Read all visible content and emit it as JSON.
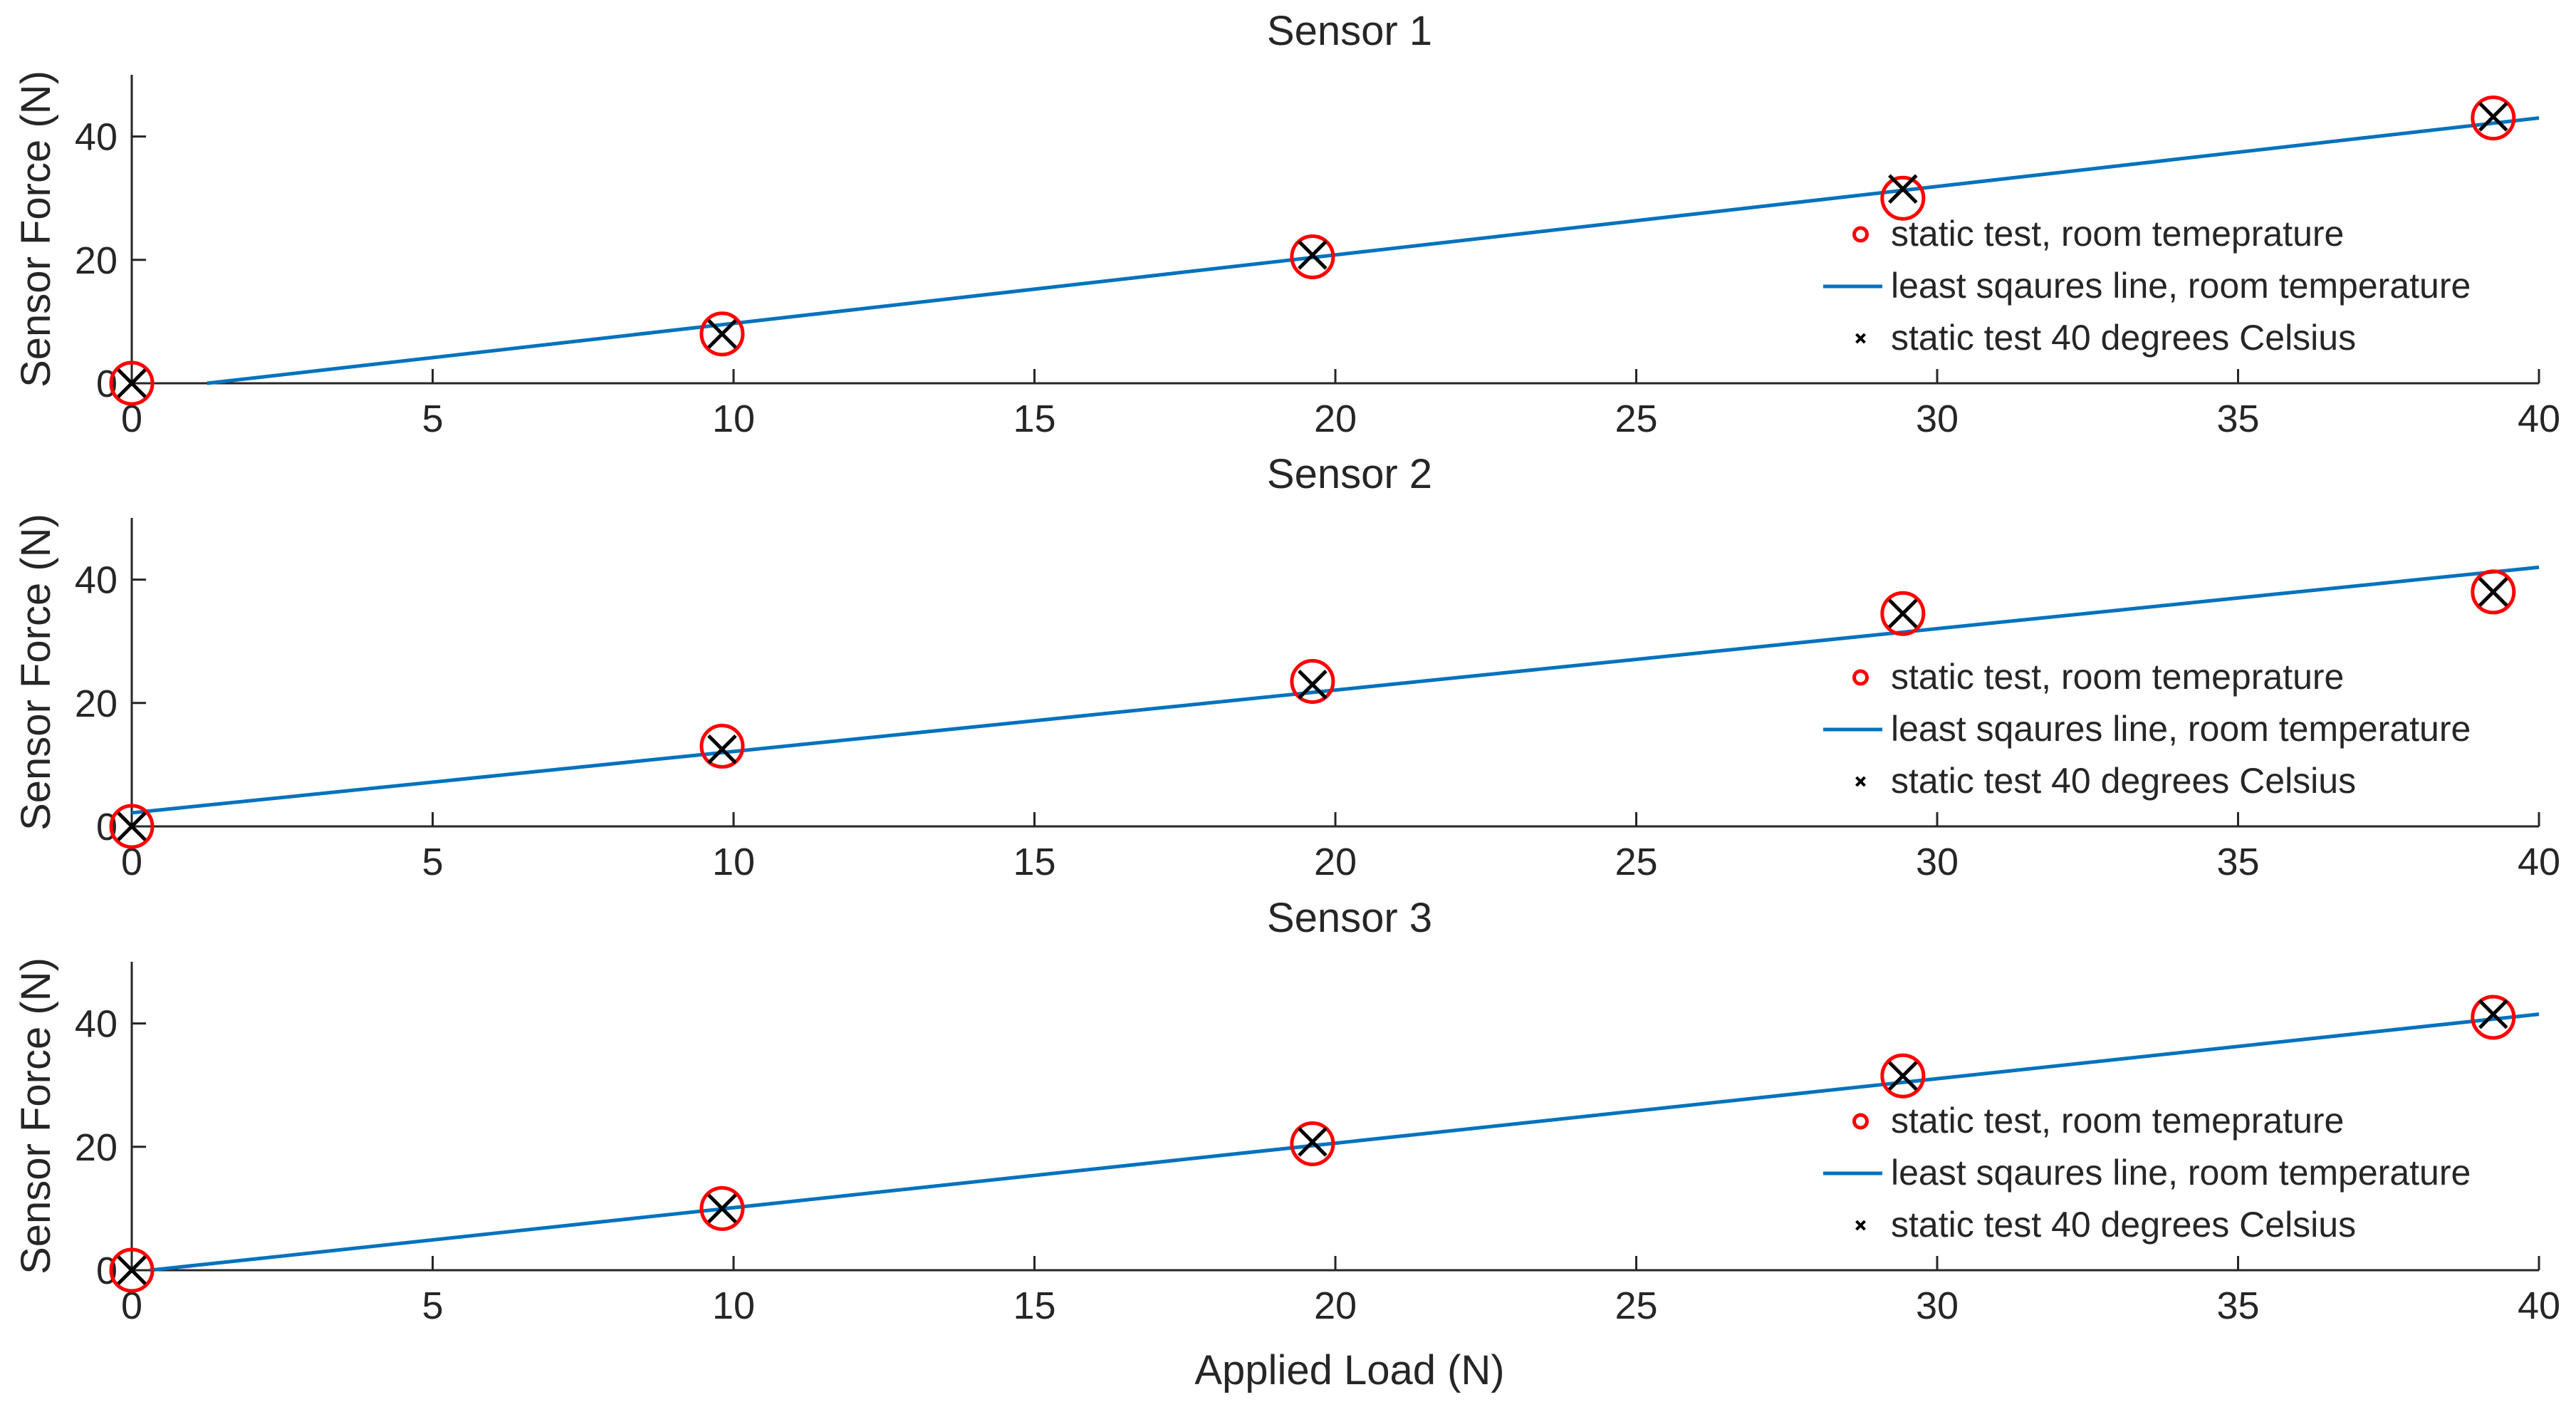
{
  "chart_data": [
    {
      "type": "scatter",
      "title": "Sensor 1",
      "xlabel": "",
      "ylabel": "Sensor Force (N)",
      "xlim": [
        0,
        40
      ],
      "ylim": [
        0,
        50
      ],
      "xticks": [
        0,
        5,
        10,
        15,
        20,
        25,
        30,
        35,
        40
      ],
      "yticks": [
        0,
        20,
        40
      ],
      "grid": false,
      "legend_position": "right",
      "series": [
        {
          "name": "static test, room temeprature",
          "kind": "circle-marker",
          "color": "#ff0000",
          "x": [
            0,
            9.81,
            19.62,
            29.43,
            39.24
          ],
          "y": [
            0,
            8,
            20.5,
            30,
            43
          ]
        },
        {
          "name": "least sqaures line, room temperature",
          "kind": "line",
          "color": "#0072bd",
          "x": [
            1.25,
            40
          ],
          "y": [
            0,
            43
          ]
        },
        {
          "name": "static test 40 degrees Celsius",
          "kind": "x-marker",
          "color": "#000000",
          "x": [
            0,
            9.81,
            19.62,
            29.43,
            39.24
          ],
          "y": [
            0,
            8,
            20.8,
            31.5,
            43.2
          ]
        }
      ]
    },
    {
      "type": "scatter",
      "title": "Sensor 2",
      "xlabel": "",
      "ylabel": "Sensor Force (N)",
      "xlim": [
        0,
        40
      ],
      "ylim": [
        0,
        50
      ],
      "xticks": [
        0,
        5,
        10,
        15,
        20,
        25,
        30,
        35,
        40
      ],
      "yticks": [
        0,
        20,
        40
      ],
      "grid": false,
      "legend_position": "right",
      "series": [
        {
          "name": "static test, room temeprature",
          "kind": "circle-marker",
          "color": "#ff0000",
          "x": [
            0,
            9.81,
            19.62,
            29.43,
            39.24
          ],
          "y": [
            0,
            13,
            23.5,
            34.5,
            38
          ]
        },
        {
          "name": "least sqaures line, room temperature",
          "kind": "line",
          "color": "#0072bd",
          "x": [
            0,
            40
          ],
          "y": [
            2.2,
            42
          ]
        },
        {
          "name": "static test 40 degrees Celsius",
          "kind": "x-marker",
          "color": "#000000",
          "x": [
            0,
            9.81,
            19.62,
            29.43,
            39.24
          ],
          "y": [
            0,
            12.5,
            23,
            34.5,
            38
          ]
        }
      ]
    },
    {
      "type": "scatter",
      "title": "Sensor 3",
      "xlabel": "Applied Load (N)",
      "ylabel": "Sensor Force (N)",
      "xlim": [
        0,
        40
      ],
      "ylim": [
        0,
        50
      ],
      "xticks": [
        0,
        5,
        10,
        15,
        20,
        25,
        30,
        35,
        40
      ],
      "yticks": [
        0,
        20,
        40
      ],
      "grid": false,
      "legend_position": "right",
      "series": [
        {
          "name": "static test, room temeprature",
          "kind": "circle-marker",
          "color": "#ff0000",
          "x": [
            0,
            9.81,
            19.62,
            29.43,
            39.24
          ],
          "y": [
            0,
            10,
            20.5,
            31.5,
            41
          ]
        },
        {
          "name": "least sqaures line, room temperature",
          "kind": "line",
          "color": "#0072bd",
          "x": [
            0.3,
            40
          ],
          "y": [
            0,
            41.5
          ]
        },
        {
          "name": "static test 40 degrees Celsius",
          "kind": "x-marker",
          "color": "#000000",
          "x": [
            0,
            9.81,
            19.62,
            29.43,
            39.24
          ],
          "y": [
            0,
            10,
            20.8,
            31.5,
            41.5
          ]
        }
      ]
    }
  ]
}
